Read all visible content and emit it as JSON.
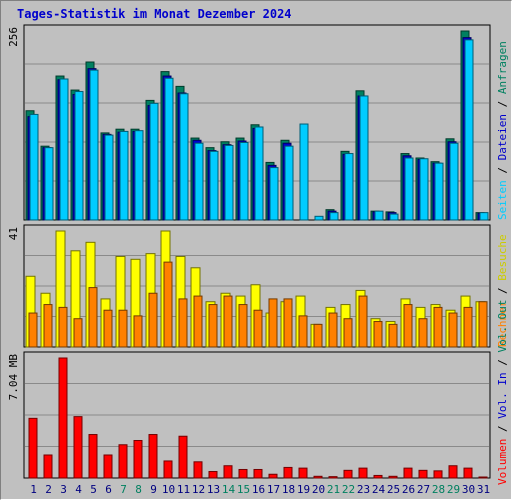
{
  "title": "Tages-Statistik im Monat Dezember 2024",
  "chart_data": [
    {
      "type": "bar",
      "panel": "top",
      "x": [
        "1",
        "2",
        "3",
        "4",
        "5",
        "6",
        "7",
        "8",
        "9",
        "10",
        "11",
        "12",
        "13",
        "14",
        "15",
        "16",
        "17",
        "18",
        "19",
        "20",
        "21",
        "22",
        "23",
        "24",
        "25",
        "26",
        "27",
        "28",
        "29",
        "30",
        "31"
      ],
      "ymax_label": "256",
      "ylim": [
        0,
        256
      ],
      "grid": true,
      "series": [
        {
          "name": "Anfragen",
          "color": "#008060",
          "values": [
            148,
            100,
            195,
            176,
            214,
            118,
            123,
            123,
            162,
            201,
            181,
            111,
            98,
            106,
            111,
            129,
            78,
            108,
            0,
            0,
            14,
            93,
            175,
            12,
            11,
            90,
            84,
            79,
            110,
            256,
            10
          ]
        },
        {
          "name": "Dateien",
          "color": "#0000cc",
          "values": [
            140,
            98,
            190,
            170,
            205,
            116,
            119,
            120,
            155,
            195,
            172,
            108,
            94,
            102,
            107,
            124,
            74,
            104,
            0,
            0,
            12,
            89,
            168,
            11,
            10,
            87,
            82,
            77,
            106,
            247,
            9
          ]
        },
        {
          "name": "Seiten",
          "color": "#00ccff",
          "values": [
            143,
            98,
            191,
            174,
            203,
            115,
            120,
            121,
            158,
            192,
            171,
            104,
            93,
            101,
            105,
            126,
            71,
            100,
            130,
            5,
            10,
            90,
            168,
            12,
            8,
            84,
            83,
            77,
            104,
            244,
            10
          ]
        }
      ]
    },
    {
      "type": "bar",
      "panel": "middle",
      "x": [
        "1",
        "2",
        "3",
        "4",
        "5",
        "6",
        "7",
        "8",
        "9",
        "10",
        "11",
        "12",
        "13",
        "14",
        "15",
        "16",
        "17",
        "18",
        "19",
        "20",
        "21",
        "22",
        "23",
        "24",
        "25",
        "26",
        "27",
        "28",
        "29",
        "30",
        "31"
      ],
      "ymax_label": "41",
      "ylim": [
        0,
        41
      ],
      "grid": true,
      "series": [
        {
          "name": "Besuche",
          "color": "#ffff00",
          "values": [
            25,
            19,
            41,
            34,
            37,
            17,
            32,
            31,
            33,
            41,
            32,
            28,
            16,
            19,
            18,
            22,
            12,
            16,
            18,
            8,
            14,
            15,
            20,
            10,
            9,
            17,
            14,
            15,
            13,
            18,
            16
          ]
        },
        {
          "name": "Rechner",
          "color": "#ff8000",
          "values": [
            12,
            15,
            14,
            10,
            21,
            13,
            13,
            11,
            19,
            30,
            17,
            18,
            15,
            18,
            15,
            13,
            17,
            17,
            11,
            8,
            12,
            10,
            18,
            9,
            8,
            15,
            10,
            14,
            12,
            14,
            16
          ]
        }
      ]
    },
    {
      "type": "bar",
      "panel": "bottom",
      "x": [
        "1",
        "2",
        "3",
        "4",
        "5",
        "6",
        "7",
        "8",
        "9",
        "10",
        "11",
        "12",
        "13",
        "14",
        "15",
        "16",
        "17",
        "18",
        "19",
        "20",
        "21",
        "22",
        "23",
        "24",
        "25",
        "26",
        "27",
        "28",
        "29",
        "30",
        "31"
      ],
      "ymax_label": "7.04 MB",
      "ylim": [
        0,
        7.04
      ],
      "grid": true,
      "series": [
        {
          "name": "Volumen",
          "color": "#ff0000",
          "values": [
            3.5,
            1.35,
            7.04,
            3.6,
            2.55,
            1.35,
            1.95,
            2.2,
            2.55,
            1.0,
            2.45,
            0.95,
            0.38,
            0.72,
            0.5,
            0.5,
            0.22,
            0.62,
            0.58,
            0.1,
            0.08,
            0.45,
            0.58,
            0.15,
            0.1,
            0.58,
            0.45,
            0.42,
            0.72,
            0.58,
            0.05
          ]
        }
      ]
    }
  ],
  "right_legend": {
    "top": [
      "Anfragen",
      "Dateien",
      "Seiten"
    ],
    "middle": [
      "Besuche",
      "Rechner"
    ],
    "bottom": [
      "Volumen",
      "Vol. In",
      "Vol. Out"
    ]
  },
  "weekend_days": [
    "7",
    "8",
    "14",
    "15",
    "21",
    "22",
    "28",
    "29"
  ],
  "colors": {
    "background": "#c0c0c0",
    "grid": "#808080",
    "weekday_label": "#008060",
    "weekend_label": "#008060",
    "day_label": "#000080",
    "volume_in": "#0000cc",
    "volume_out": "#008060",
    "title": "#0000cc"
  }
}
